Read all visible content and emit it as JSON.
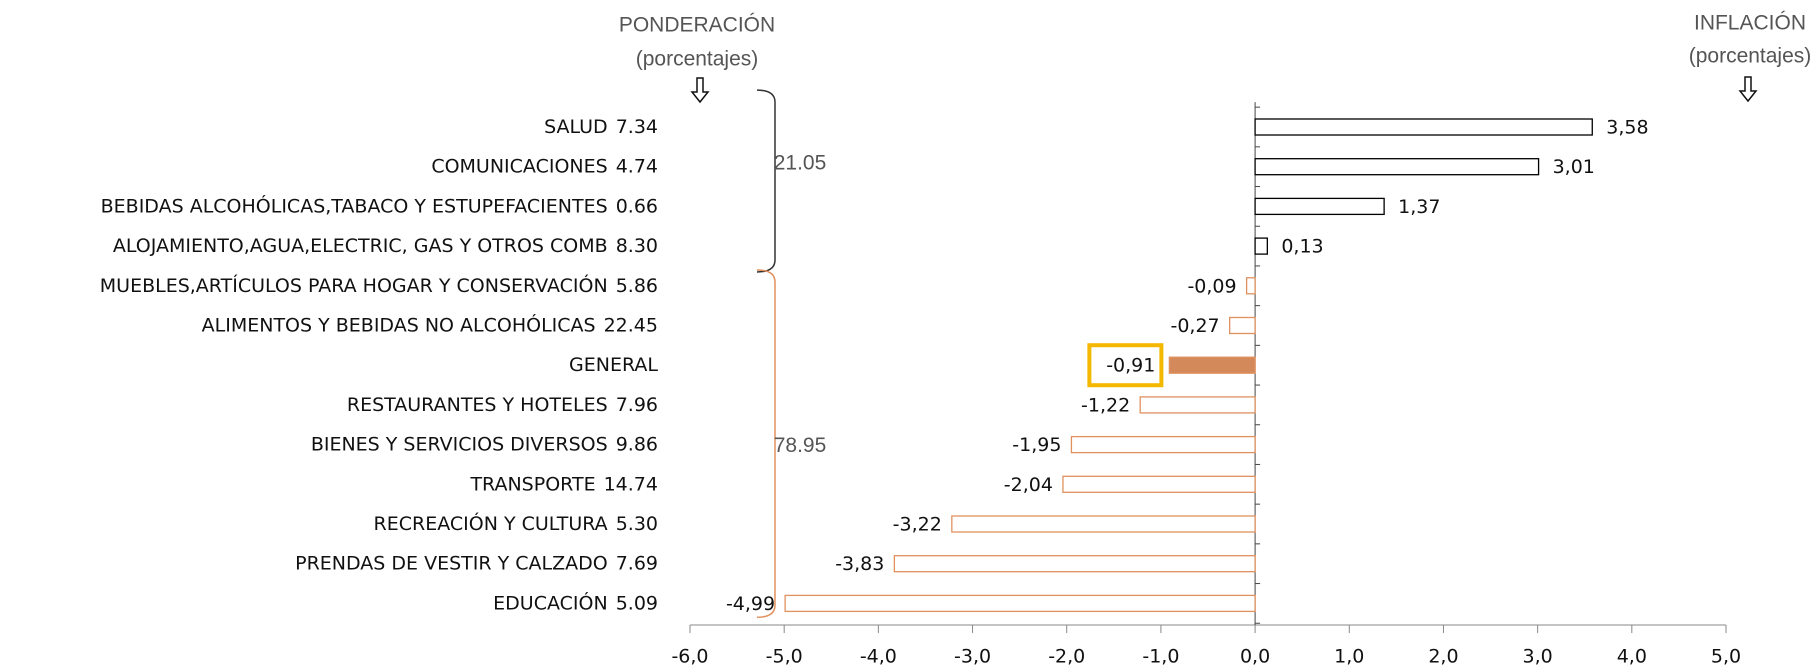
{
  "chart_data": {
    "type": "bar",
    "orientation": "horizontal",
    "header_left": "PONDERACIÓN",
    "header_left_sub": "(porcentajes)",
    "header_right": "INFLACIÓN",
    "header_right_sub": "(porcentajes)",
    "categories": [
      "SALUD",
      "COMUNICACIONES",
      "BEBIDAS ALCOHÓLICAS,TABACO Y ESTUPEFACIENTES",
      "ALOJAMIENTO,AGUA,ELECTRIC, GAS Y OTROS COMB",
      "MUEBLES,ARTÍCULOS PARA HOGAR Y CONSERVACIÓN",
      "ALIMENTOS Y BEBIDAS NO ALCOHÓLICAS",
      "GENERAL",
      "RESTAURANTES Y HOTELES",
      "BIENES Y SERVICIOS DIVERSOS",
      "TRANSPORTE",
      "RECREACIÓN Y CULTURA",
      "PRENDAS DE VESTIR Y CALZADO",
      "EDUCACIÓN"
    ],
    "weights": [
      7.34,
      4.74,
      0.66,
      8.3,
      5.86,
      22.45,
      null,
      7.96,
      9.86,
      14.74,
      5.3,
      7.69,
      5.09
    ],
    "weight_labels": [
      "7.34",
      "4.74",
      "0.66",
      "8.30",
      "5.86",
      "22.45",
      null,
      "7.96",
      "9.86",
      "14.74",
      "5.30",
      "7.69",
      "5.09"
    ],
    "values": [
      3.58,
      3.01,
      1.37,
      0.13,
      -0.09,
      -0.27,
      -0.91,
      -1.22,
      -1.95,
      -2.04,
      -3.22,
      -3.83,
      -4.99
    ],
    "value_labels": [
      "3,58",
      "3,01",
      "1,37",
      "0,13",
      "-0,09",
      "-0,27",
      "-0,91",
      "-1,22",
      "-1,95",
      "-2,04",
      "-3,22",
      "-3,83",
      "-4,99"
    ],
    "groups": [
      {
        "label": "21.05",
        "first": 0,
        "last": 3,
        "color": "#333333"
      },
      {
        "label": "78.95",
        "first": 4,
        "last": 12,
        "color": "#e0915e"
      }
    ],
    "positive_color": "#000000",
    "negative_color": "#e0915e",
    "highlight_index": 6,
    "highlight_fill": "#d4895a",
    "highlight_box_color": "#f5b800",
    "xlim": [
      -6,
      5
    ],
    "xticks": [
      {
        "value": -6,
        "label": "-6,0"
      },
      {
        "value": -5,
        "label": "-5,0"
      },
      {
        "value": -4,
        "label": "-4,0"
      },
      {
        "value": -3,
        "label": "-3,0"
      },
      {
        "value": -2,
        "label": "-2,0"
      },
      {
        "value": -1,
        "label": "-1,0"
      },
      {
        "value": 0,
        "label": "0,0"
      },
      {
        "value": 1,
        "label": "1,0"
      },
      {
        "value": 2,
        "label": "2,0"
      },
      {
        "value": 3,
        "label": "3,0"
      },
      {
        "value": 4,
        "label": "4,0"
      },
      {
        "value": 5,
        "label": "5,0"
      }
    ]
  }
}
